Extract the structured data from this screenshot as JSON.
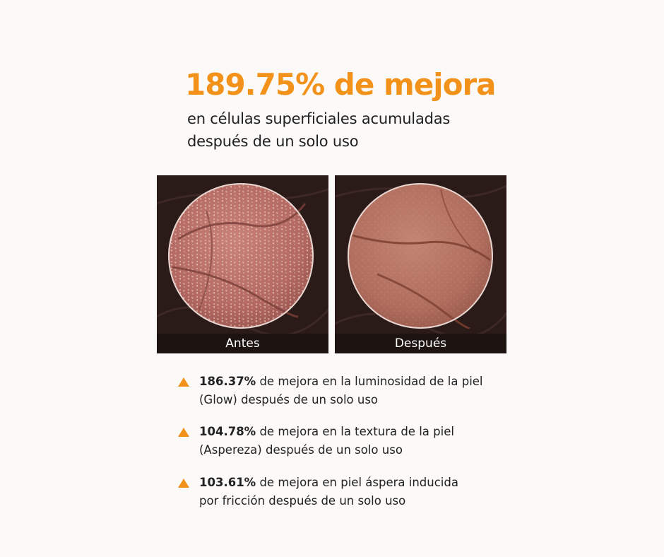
{
  "header": {
    "headline": "189.75% de mejora",
    "line1": "en células superficiales acumuladas",
    "line2": "después de un solo uso"
  },
  "panels": {
    "before_caption": "Antes",
    "after_caption": "Después"
  },
  "stats": [
    {
      "icon": "triangle-up-icon",
      "percent": "186.37%",
      "line1": " de mejora en la luminosidad de la piel",
      "line2": "(Glow) después de un solo uso"
    },
    {
      "icon": "triangle-up-icon",
      "percent": "104.78%",
      "line1": " de mejora en la textura de la piel",
      "line2": "(Aspereza) después de un solo uso"
    },
    {
      "icon": "triangle-up-icon",
      "percent": "103.61%",
      "line1": " de mejora en piel áspera inducida",
      "line2": "por fricción después de un solo uso"
    }
  ],
  "colors": {
    "accent": "#f2921a",
    "background": "#fcfaf8",
    "text": "#1f1f1f",
    "panel_dark": "#2c1c1a"
  }
}
